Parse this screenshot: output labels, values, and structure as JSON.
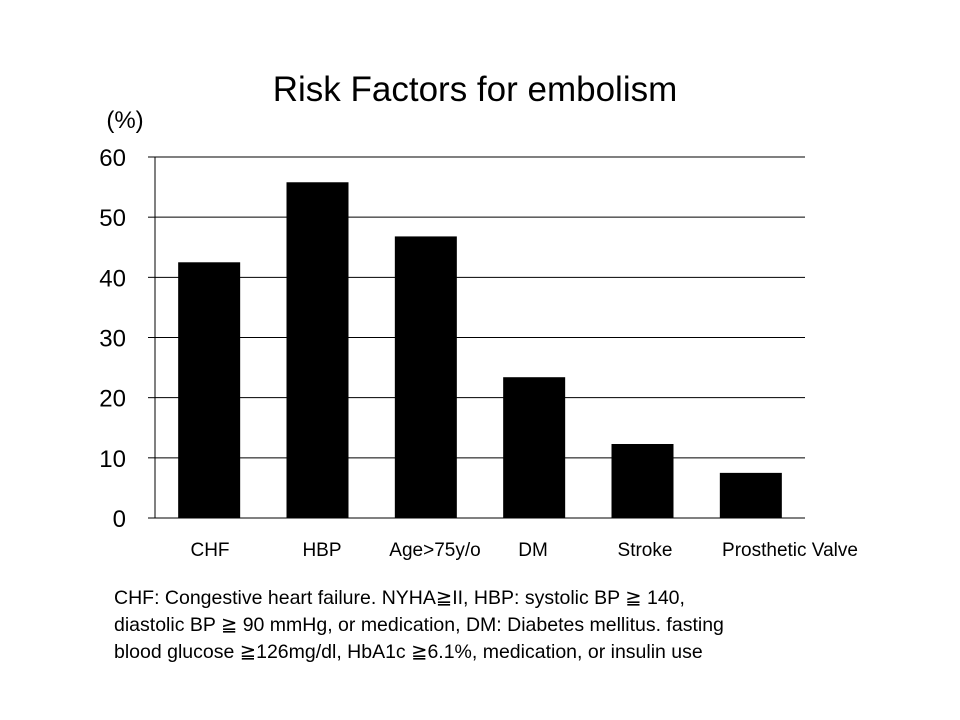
{
  "chart_data": {
    "type": "bar",
    "title": "Risk Factors for embolism",
    "ylabel": "(%)",
    "xlabel": "",
    "categories": [
      "CHF",
      "HBP",
      "Age>75y/o",
      "DM",
      "Stroke",
      "Prosthetic Valve"
    ],
    "values": [
      42.5,
      55.8,
      46.8,
      23.4,
      12.3,
      7.5
    ],
    "ylim": [
      0,
      60
    ],
    "yticks": [
      0,
      10,
      20,
      30,
      40,
      50,
      60
    ],
    "grid": true,
    "bar_color": "#000000",
    "grid_color": "#000000"
  },
  "footnote": {
    "lines": [
      "CHF: Congestive heart failure. NYHA≧II,  HBP: systolic BP ≧ 140,",
      "diastolic BP ≧ 90 mmHg, or medication, DM: Diabetes mellitus. fasting",
      "blood glucose ≧126mg/dl, HbA1c ≧6.1%, medication, or insulin use"
    ]
  }
}
